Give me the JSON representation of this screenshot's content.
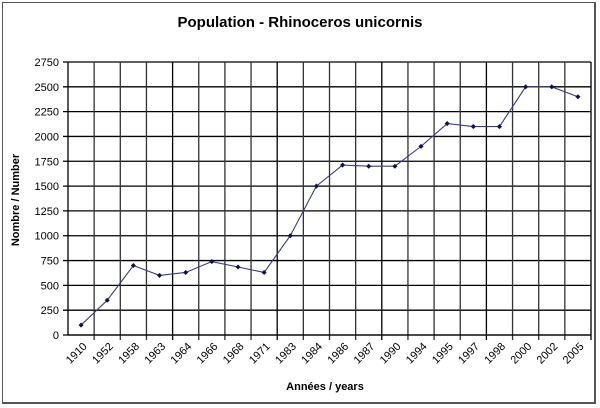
{
  "chart_data": {
    "type": "line",
    "title": "Population - Rhinoceros unicornis",
    "xlabel": "Années / years",
    "ylabel": "Nombre / Number",
    "categories": [
      "1910",
      "1952",
      "1958",
      "1963",
      "1964",
      "1966",
      "1968",
      "1971",
      "1983",
      "1984",
      "1986",
      "1987",
      "1990",
      "1994",
      "1995",
      "1997",
      "1998",
      "2000",
      "2002",
      "2005"
    ],
    "series": [
      {
        "name": "Population",
        "values": [
          100,
          350,
          700,
          600,
          630,
          740,
          685,
          630,
          1000,
          1500,
          1712,
          1700,
          1700,
          1900,
          2130,
          2100,
          2100,
          2500,
          2500,
          2400
        ],
        "color": "#2b2b7a"
      }
    ],
    "yticks": [
      0,
      250,
      500,
      750,
      1000,
      1250,
      1500,
      1750,
      2000,
      2250,
      2500,
      2750
    ],
    "ylim": [
      0,
      2750
    ],
    "grid": true,
    "legend": "none"
  }
}
